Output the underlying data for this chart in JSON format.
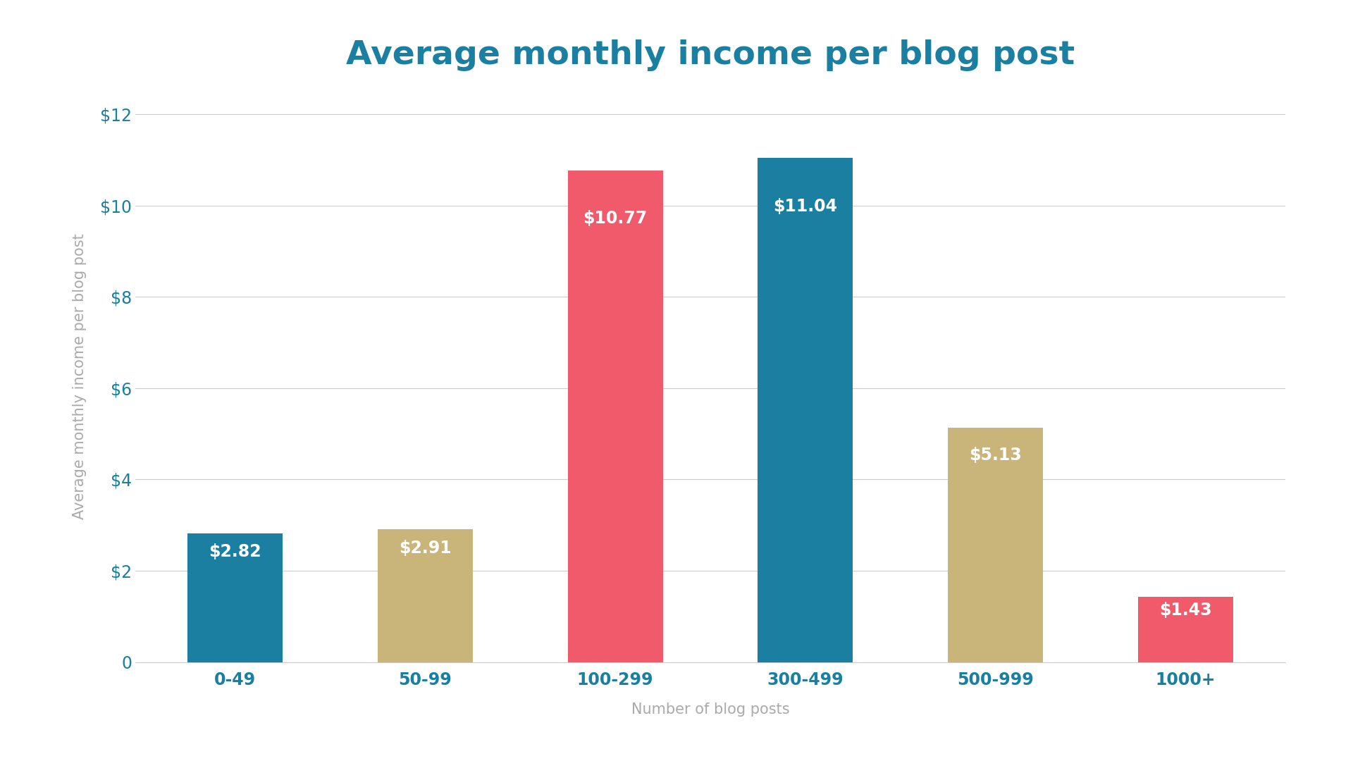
{
  "categories": [
    "0-49",
    "50-99",
    "100-299",
    "300-499",
    "500-999",
    "1000+"
  ],
  "values": [
    2.82,
    2.91,
    10.77,
    11.04,
    5.13,
    1.43
  ],
  "bar_colors": [
    "#1a7fa0",
    "#c9b47a",
    "#f05a6a",
    "#1a7fa0",
    "#c9b47a",
    "#f05a6a"
  ],
  "labels": [
    "$2.82",
    "$2.91",
    "$10.77",
    "$11.04",
    "$5.13",
    "$1.43"
  ],
  "title": "Average monthly income per blog post",
  "xlabel": "Number of blog posts",
  "ylabel": "Average monthly income per blog post",
  "ylim": [
    0,
    12.5
  ],
  "yticks": [
    0,
    2,
    4,
    6,
    8,
    10,
    12
  ],
  "ytick_labels": [
    "0",
    "$2",
    "$4",
    "$6",
    "$8",
    "$10",
    "$12"
  ],
  "title_color": "#1a7fa0",
  "axis_label_color": "#aaaaaa",
  "tick_label_color": "#1a7fa0",
  "background_color": "#ffffff",
  "grid_color": "#cccccc",
  "bar_label_color": "#ffffff",
  "title_fontsize": 34,
  "axis_label_fontsize": 15,
  "tick_fontsize": 17,
  "bar_label_fontsize": 17,
  "bar_width": 0.5
}
